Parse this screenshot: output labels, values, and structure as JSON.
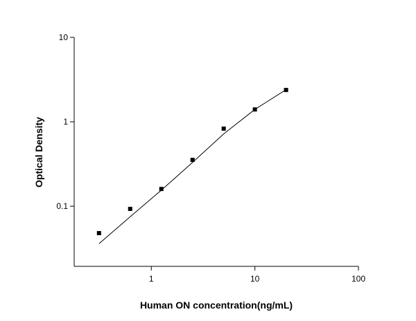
{
  "chart_data": {
    "type": "scatter",
    "x_label": "Human ON concentration(ng/mL)",
    "y_label": "Optical Density",
    "x_log": true,
    "y_log": true,
    "xlim": [
      0.18,
      100
    ],
    "ylim": [
      0.0194,
      10
    ],
    "xticks": [
      1,
      10,
      100
    ],
    "yticks": [
      0.1,
      1,
      10
    ],
    "series": [
      {
        "kind": "points",
        "color": "#000000",
        "x": [
          0.3125,
          0.625,
          1.25,
          2.5,
          5,
          10,
          20
        ],
        "values": [
          0.048,
          0.093,
          0.16,
          0.354,
          0.83,
          1.4,
          2.38
        ]
      },
      {
        "kind": "fit",
        "color": "#000000",
        "x": [
          0.3125,
          0.625,
          1.25,
          2.5,
          5,
          10,
          20
        ],
        "values": [
          0.036,
          0.075,
          0.155,
          0.33,
          0.72,
          1.4,
          2.4
        ]
      }
    ]
  }
}
